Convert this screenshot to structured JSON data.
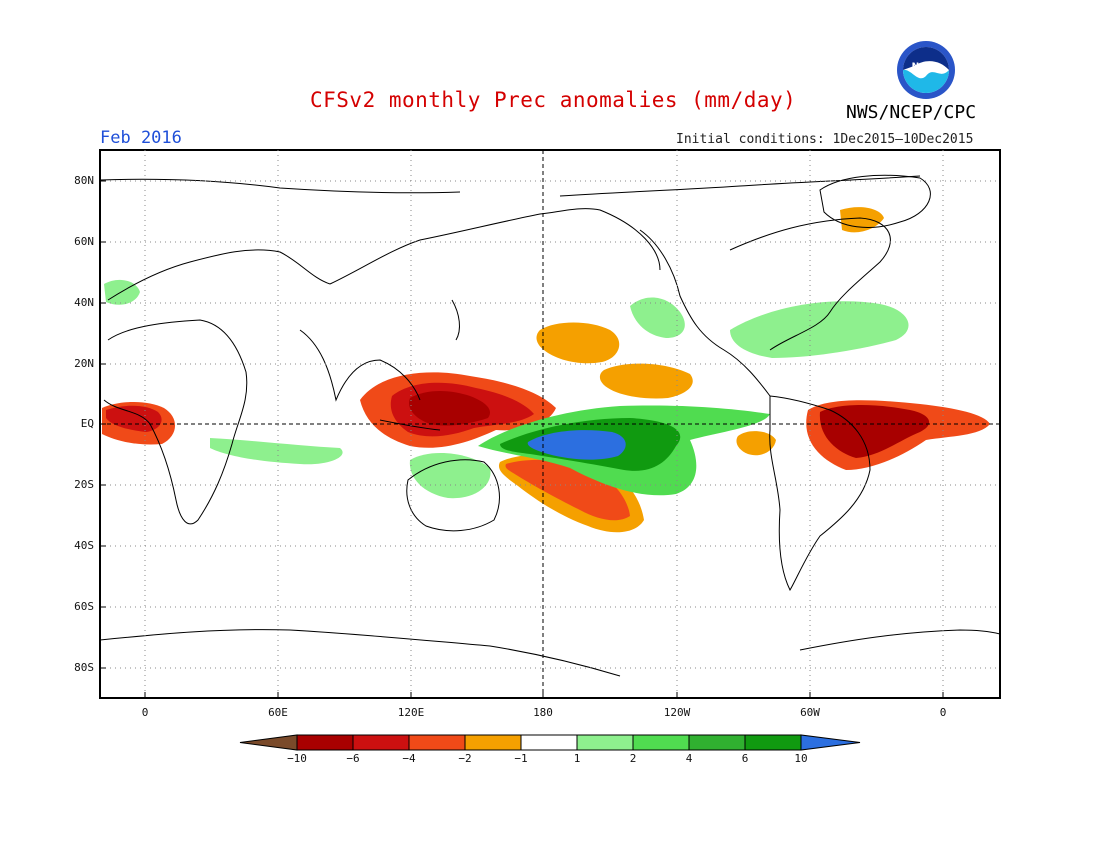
{
  "header": {
    "title": "CFSv2 monthly Prec anomalies (mm/day)",
    "agency": "NWS/NCEP/CPC",
    "month": "Feb 2016",
    "initial_conditions": "Initial conditions: 1Dec2015–10Dec2015",
    "logo_text": "NOAA"
  },
  "axes": {
    "lat_labels": [
      "80N",
      "60N",
      "40N",
      "20N",
      "EQ",
      "20S",
      "40S",
      "60S",
      "80S"
    ],
    "lon_labels": [
      "0",
      "60E",
      "120E",
      "180",
      "120W",
      "60W",
      "0"
    ]
  },
  "colorbar": {
    "labels": [
      "−10",
      "−6",
      "−4",
      "−2",
      "−1",
      "1",
      "2",
      "4",
      "6",
      "10"
    ],
    "colors": {
      "lt_-10": "#7a4a2a",
      "-10_-6": "#a80000",
      "-6_-4": "#cc1010",
      "-4_-2": "#f04a18",
      "-2_-1": "#f5a000",
      "-1_1": "#ffffff",
      "1_2": "#8ef08e",
      "2_4": "#50dc50",
      "4_6": "#30b030",
      "6_10": "#109a10",
      "gt_10": "#2c6fe0"
    }
  }
}
